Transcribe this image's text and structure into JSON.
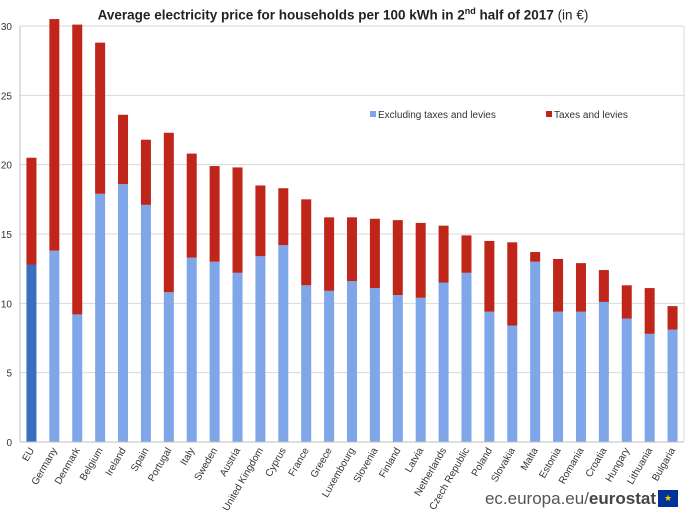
{
  "chart_data": {
    "type": "bar",
    "stacked": true,
    "title": {
      "main": "Average electricity price for households per 100 kWh in 2",
      "sup": "nd",
      "rest": " half of 2017",
      "unit": " (in €)"
    },
    "ylim": [
      0,
      30
    ],
    "yticks": [
      0,
      5,
      10,
      15,
      20,
      25,
      30
    ],
    "grid": true,
    "legend_position": "top-right",
    "categories": [
      "EU",
      "Germany",
      "Denmark",
      "Belgium",
      "Ireland",
      "Spain",
      "Portugal",
      "Italy",
      "Sweden",
      "Austria",
      "United Kingdom",
      "Cyprus",
      "France",
      "Greece",
      "Luxembourg",
      "Slovenia",
      "Finland",
      "Latvia",
      "Netherlands",
      "Czech Republic",
      "Poland",
      "Slovakia",
      "Malta",
      "Estonia",
      "Romania",
      "Croatia",
      "Hungary",
      "Lithuania",
      "Bulgaria"
    ],
    "series": [
      {
        "name": "Excluding taxes and levies",
        "color": "#7ea6e8",
        "highlight_color": "#3a6fbf",
        "values": [
          12.8,
          13.8,
          9.2,
          17.9,
          18.6,
          17.1,
          10.8,
          13.3,
          13.0,
          12.2,
          13.4,
          14.2,
          11.3,
          10.9,
          11.6,
          11.1,
          10.6,
          10.4,
          11.5,
          12.2,
          9.4,
          8.4,
          13.0,
          9.4,
          9.4,
          10.1,
          8.9,
          7.8,
          8.1
        ]
      },
      {
        "name": "Taxes and levies",
        "color": "#c0251a",
        "values": [
          7.7,
          16.7,
          20.9,
          10.9,
          5.0,
          4.7,
          11.5,
          7.5,
          6.9,
          7.6,
          5.1,
          4.1,
          6.2,
          5.3,
          4.6,
          5.0,
          5.4,
          5.4,
          4.1,
          2.7,
          5.1,
          6.0,
          0.7,
          3.8,
          3.5,
          2.3,
          2.4,
          3.3,
          1.7
        ]
      }
    ]
  },
  "footer": {
    "domain": "ec.europa.eu/",
    "brand": "eurostat"
  },
  "flag_stars": "★"
}
